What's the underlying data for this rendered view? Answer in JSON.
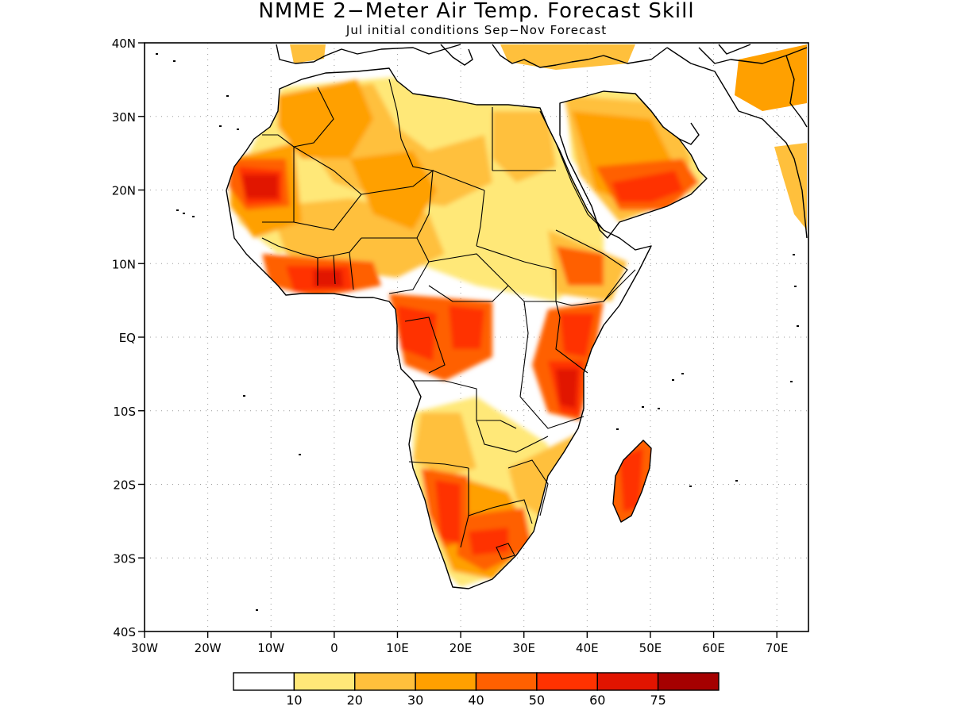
{
  "title": "NMME 2−Meter Air Temp. Forecast Skill",
  "subtitle": "Jul initial conditions   Sep−Nov Forecast",
  "map": {
    "lon_range": [
      -30,
      75
    ],
    "lat_range": [
      -40,
      40
    ],
    "grid": "dotted",
    "land_color": "#ffffff",
    "ocean_color": "#ffffff",
    "border_color": "#000000",
    "lat_labels": [
      "40N",
      "30N",
      "20N",
      "10N",
      "EQ",
      "10S",
      "20S",
      "30S",
      "40S"
    ],
    "lon_labels": [
      "30W",
      "20W",
      "10W",
      "0",
      "10E",
      "20E",
      "30E",
      "40E",
      "50E",
      "60E",
      "70E"
    ]
  },
  "colorbar": {
    "colors": [
      "#ffffff",
      "#ffe878",
      "#ffc03c",
      "#ffa000",
      "#ff6000",
      "#ff3200",
      "#e11400",
      "#a50000"
    ],
    "labels": [
      "10",
      "20",
      "30",
      "40",
      "50",
      "60",
      "75"
    ]
  }
}
